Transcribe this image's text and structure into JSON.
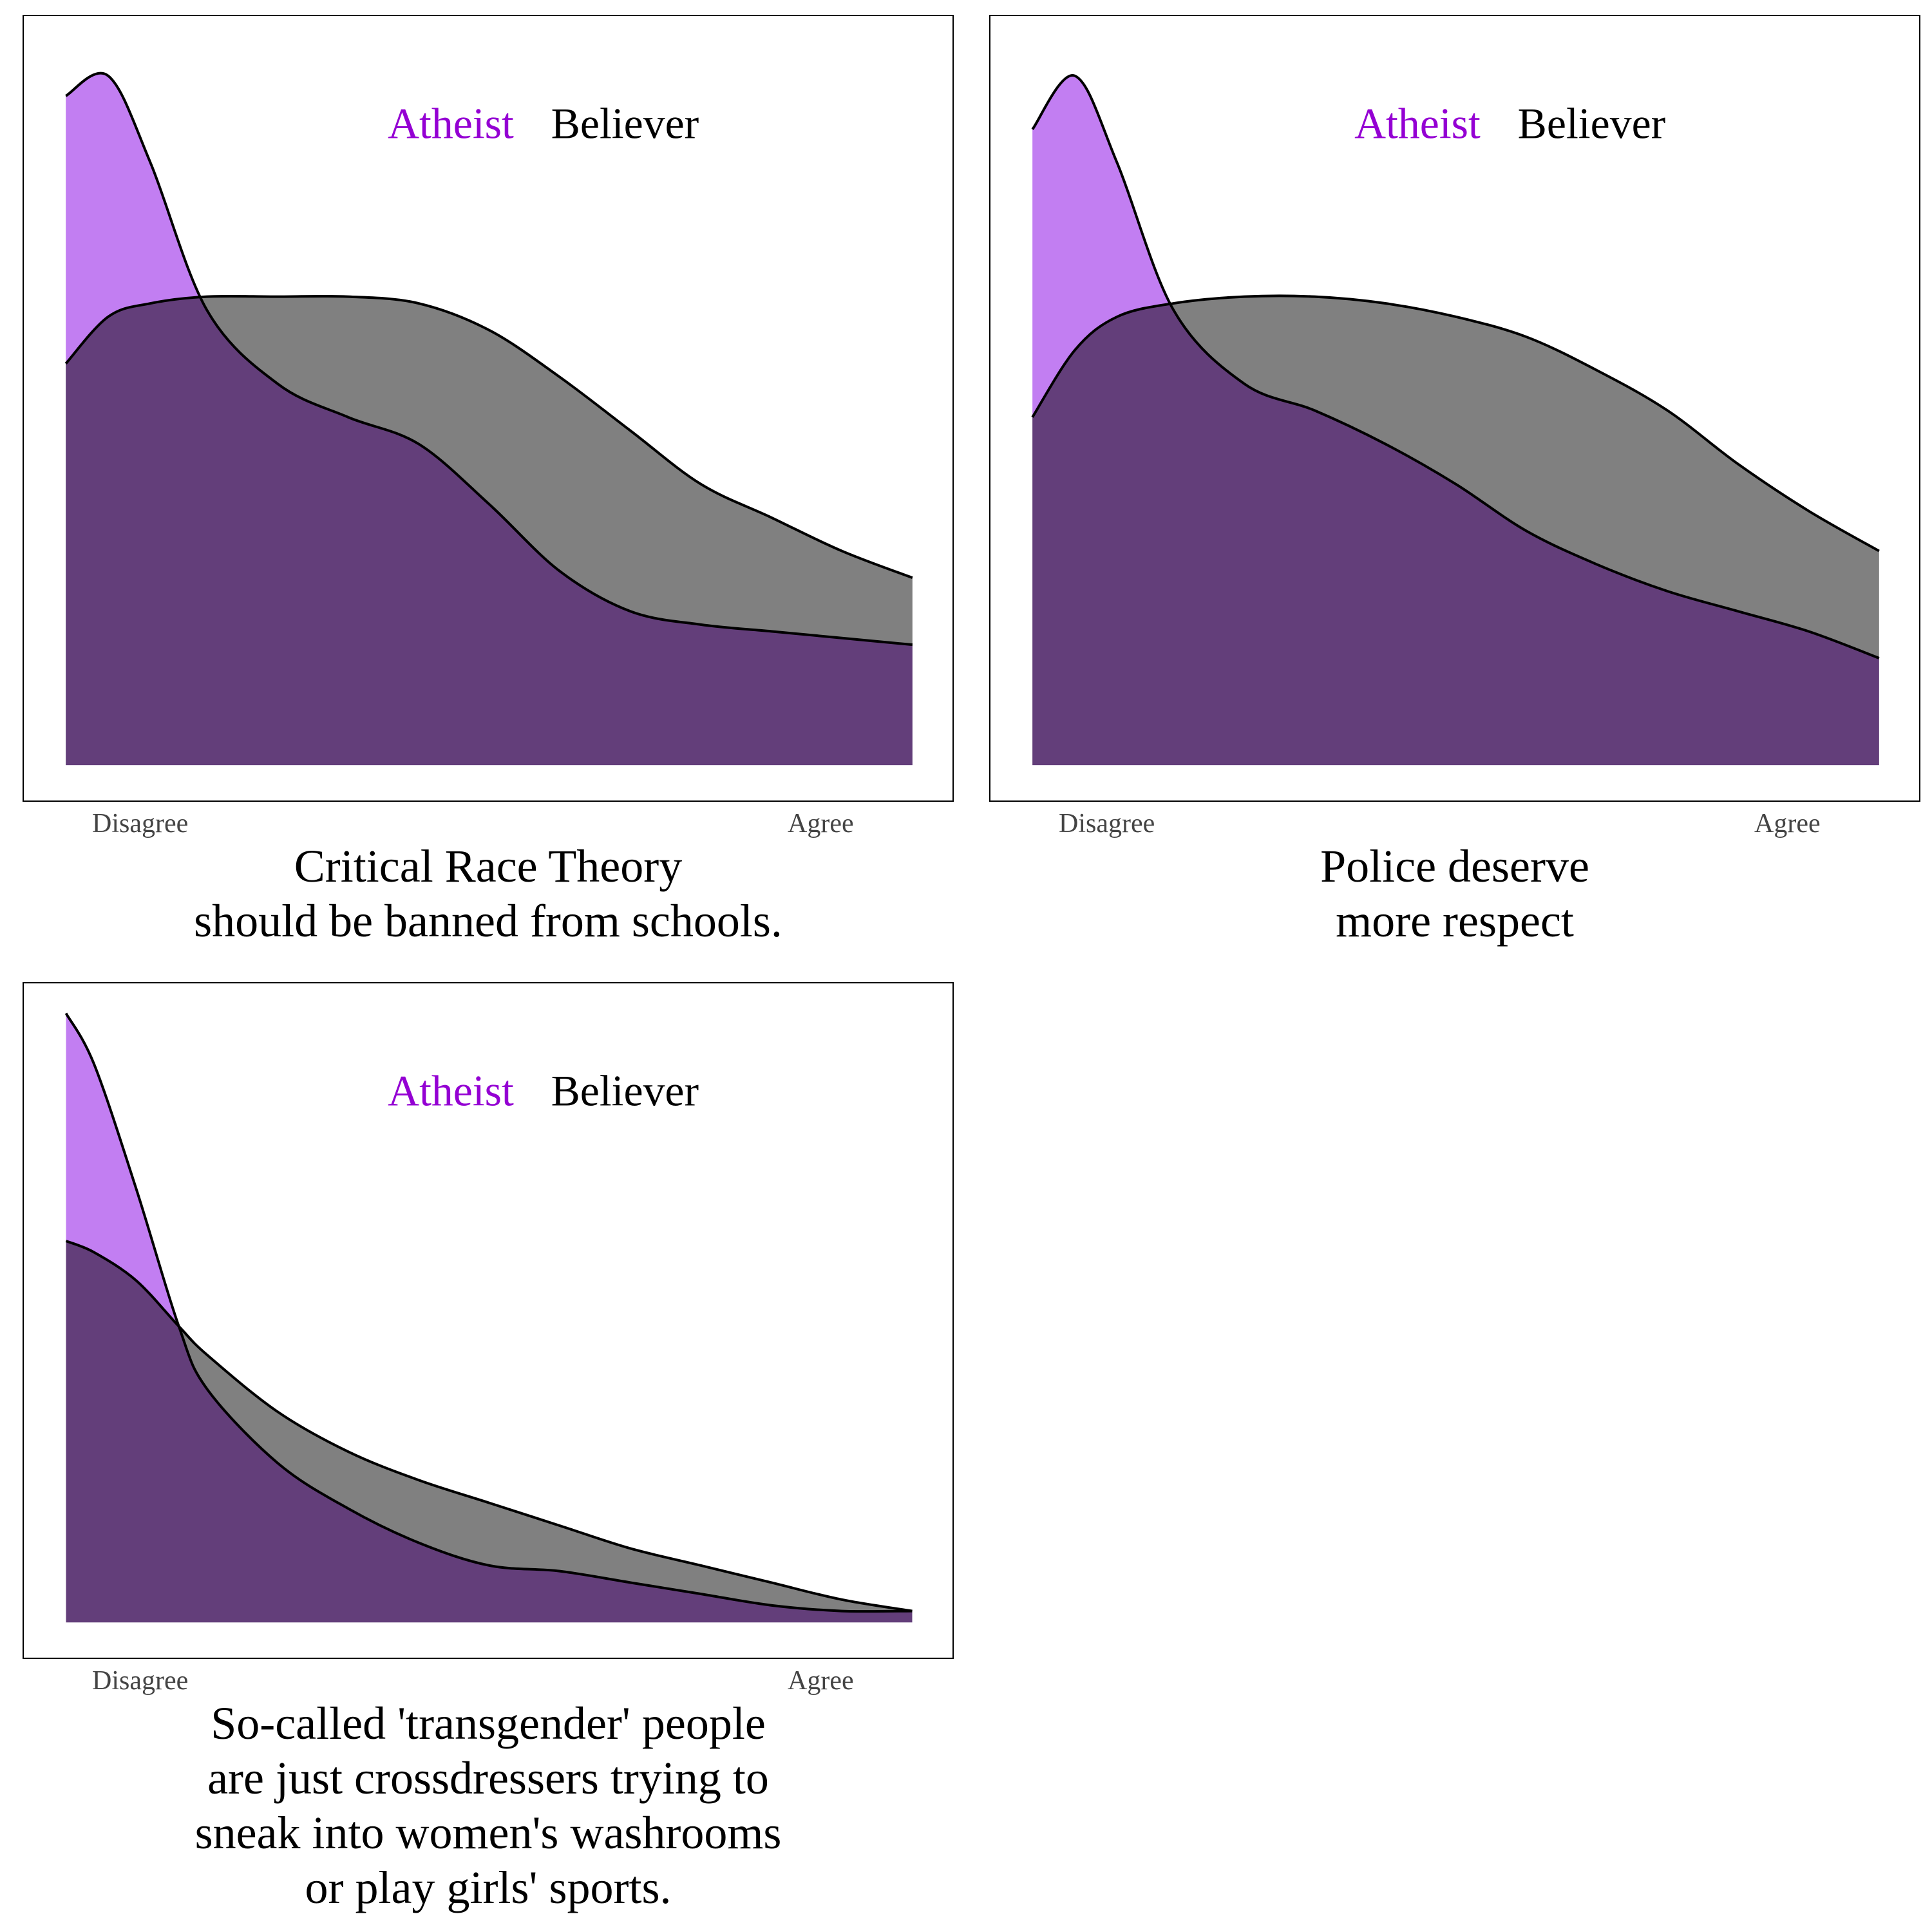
{
  "colors": {
    "atheist_fill": "#C27EF2",
    "believer_fill": "#808080",
    "overlap_fill": "#633E7A",
    "atheist_label": "#9400D3",
    "believer_label": "#000000",
    "line": "#000000"
  },
  "chart_data": [
    {
      "type": "area",
      "title": "Critical Race Theory should be banned from schools.",
      "caption_lines": [
        "Critical Race Theory",
        "should be banned from schools."
      ],
      "x_tick_labels": [
        "Disagree",
        "Agree"
      ],
      "xlim": [
        1,
        7
      ],
      "ylim": [
        0,
        1.1
      ],
      "legend": [
        "Atheist",
        "Believer"
      ],
      "legend_position": "top-center",
      "x": [
        1,
        1.3,
        1.6,
        2,
        2.5,
        3,
        3.5,
        4,
        4.5,
        5,
        5.5,
        6,
        6.5,
        7
      ],
      "series": [
        {
          "name": "Atheist",
          "values": [
            1.0,
            1.03,
            0.9,
            0.68,
            0.57,
            0.52,
            0.48,
            0.39,
            0.29,
            0.23,
            0.21,
            0.2,
            0.19,
            0.18
          ]
        },
        {
          "name": "Believer",
          "values": [
            0.6,
            0.67,
            0.69,
            0.7,
            0.7,
            0.7,
            0.69,
            0.65,
            0.58,
            0.5,
            0.42,
            0.37,
            0.32,
            0.28
          ]
        }
      ]
    },
    {
      "type": "area",
      "title": "Police deserve more respect",
      "caption_lines": [
        "Police deserve",
        "more respect"
      ],
      "x_tick_labels": [
        "Disagree",
        "Agree"
      ],
      "xlim": [
        1,
        7
      ],
      "ylim": [
        0,
        1.1
      ],
      "legend": [
        "Atheist",
        "Believer"
      ],
      "legend_position": "top-center",
      "x": [
        1,
        1.3,
        1.6,
        2,
        2.5,
        3,
        3.5,
        4,
        4.5,
        5,
        5.5,
        6,
        6.5,
        7
      ],
      "series": [
        {
          "name": "Atheist",
          "values": [
            0.95,
            1.03,
            0.9,
            0.68,
            0.57,
            0.53,
            0.48,
            0.42,
            0.35,
            0.3,
            0.26,
            0.23,
            0.2,
            0.16
          ]
        },
        {
          "name": "Believer",
          "values": [
            0.52,
            0.62,
            0.67,
            0.69,
            0.7,
            0.7,
            0.69,
            0.67,
            0.64,
            0.59,
            0.53,
            0.45,
            0.38,
            0.32
          ]
        }
      ]
    },
    {
      "type": "area",
      "title": "So-called 'transgender' people are just crossdressers trying to sneak into women's washrooms or play girls' sports.",
      "caption_lines": [
        "So-called 'transgender' people",
        "are just crossdressers trying to",
        "sneak into women's washrooms",
        "or play girls' sports."
      ],
      "x_tick_labels": [
        "Disagree",
        "Agree"
      ],
      "xlim": [
        1,
        7
      ],
      "ylim": [
        0,
        1.1
      ],
      "legend": [
        "Atheist",
        "Believer"
      ],
      "legend_position": "top-center",
      "x": [
        1,
        1.2,
        1.5,
        1.8,
        2,
        2.5,
        3,
        3.5,
        4,
        4.5,
        5,
        5.5,
        6,
        6.5,
        7
      ],
      "series": [
        {
          "name": "Atheist",
          "values": [
            1.07,
            0.98,
            0.76,
            0.52,
            0.41,
            0.28,
            0.2,
            0.14,
            0.1,
            0.09,
            0.07,
            0.05,
            0.03,
            0.02,
            0.02
          ]
        },
        {
          "name": "Believer",
          "values": [
            0.67,
            0.65,
            0.6,
            0.52,
            0.47,
            0.37,
            0.3,
            0.25,
            0.21,
            0.17,
            0.13,
            0.1,
            0.07,
            0.04,
            0.02
          ]
        }
      ]
    }
  ]
}
